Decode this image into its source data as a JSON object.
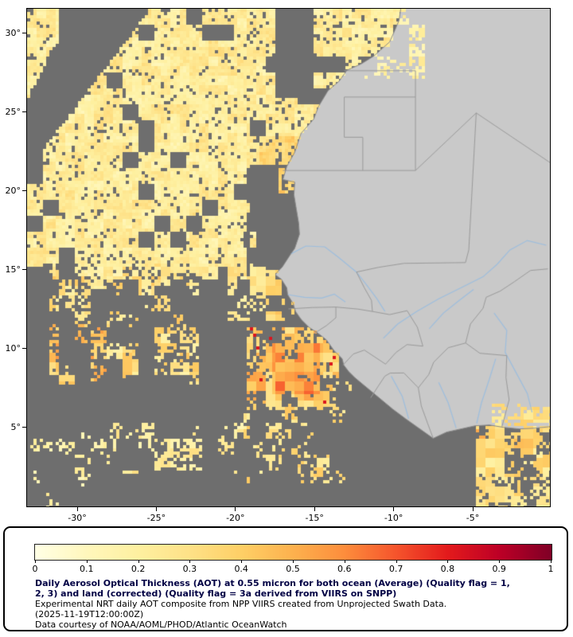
{
  "map": {
    "lat_ticks": [
      {
        "label": "30°",
        "value": 30
      },
      {
        "label": "25°",
        "value": 25
      },
      {
        "label": "20°",
        "value": 20
      },
      {
        "label": "15°",
        "value": 15
      },
      {
        "label": "10°",
        "value": 10
      },
      {
        "label": "5°",
        "value": 5
      }
    ],
    "lon_ticks": [
      {
        "label": "-30°",
        "value": -30
      },
      {
        "label": "-25°",
        "value": -25
      },
      {
        "label": "-20°",
        "value": -20
      },
      {
        "label": "-15°",
        "value": -15
      },
      {
        "label": "-10°",
        "value": -10
      },
      {
        "label": "-5°",
        "value": -5
      }
    ],
    "colors": {
      "ocean_no_data": "#6e6e6e",
      "land": "#c9c9c9",
      "country_border": "#9a9a9a",
      "coastline": "#8a8a8a",
      "river": "#9dbede",
      "frame": "#000000"
    }
  },
  "legend": {
    "ticks": [
      "0",
      "0.1",
      "0.2",
      "0.3",
      "0.4",
      "0.5",
      "0.6",
      "0.7",
      "0.8",
      "0.9",
      "1"
    ],
    "colormap_stops": [
      {
        "v": 0.0,
        "color": "#FFFFE5"
      },
      {
        "v": 0.1,
        "color": "#FFF7BC"
      },
      {
        "v": 0.2,
        "color": "#FEF0A0"
      },
      {
        "v": 0.3,
        "color": "#FEE187"
      },
      {
        "v": 0.4,
        "color": "#FECF66"
      },
      {
        "v": 0.5,
        "color": "#FDB14E"
      },
      {
        "v": 0.6,
        "color": "#FD8D3C"
      },
      {
        "v": 0.7,
        "color": "#F5542C"
      },
      {
        "v": 0.8,
        "color": "#E31A1C"
      },
      {
        "v": 0.9,
        "color": "#BD0026"
      },
      {
        "v": 1.0,
        "color": "#800026"
      }
    ],
    "title_bold_lines": [
      "Daily Aerosol Optical Thickness (AOT) at 0.55 micron for both ocean (Average) (Quality flag = 1,",
      "2, 3) and land (corrected) (Quality flag = 3a derived from VIIRS on SNPP)"
    ],
    "subtitle": "Experimental NRT daily AOT composite from NPP VIIRS created from Unprojected Swath Data.",
    "timestamp": "(2025-11-19T12:00:00Z)",
    "credit": "Data courtesy of NOAA/AOML/PHOD/Atlantic OceanWatch"
  },
  "chart_data": {
    "type": "heatmap",
    "title": "Daily Aerosol Optical Thickness (AOT) at 0.55 micron for both ocean (Average) (Quality flag = 1, 2, 3) and land (corrected) (Quality flag = 3a derived from VIIRS on SNPP)",
    "timestamp": "2025-11-19T12:00:00Z",
    "x_axis": {
      "ticks": [
        -30,
        -25,
        -20,
        -15,
        -10,
        -5
      ],
      "range": [
        -33.2,
        -0.1
      ]
    },
    "y_axis": {
      "ticks": [
        30,
        25,
        20,
        15,
        10,
        5
      ],
      "range": [
        0,
        31.6
      ]
    },
    "colorbar": {
      "min": 0,
      "max": 1,
      "ticks": [
        0,
        0.1,
        0.2,
        0.3,
        0.4,
        0.5,
        0.6,
        0.7,
        0.8,
        0.9,
        1
      ]
    },
    "legend_position": "bottom",
    "grid": false,
    "notable_features": [
      "widespread low AOT (0.1-0.3) field over NE Atlantic north of ~15N",
      "diagonal no-data swath gap in upper-left",
      "no-data gray band along Mauritania/Senegal coast 15N-21.5N",
      "moderate AOT plume (0.3-0.7) centered near 17W 8.5N",
      "scattered AOT patches 22W-32W between 8N and 14N",
      "AOT patch over Ghana / Ivory Coast shoreline in lower right",
      "land mostly without retrievals (gray), small patch over Morocco in upper right"
    ]
  }
}
